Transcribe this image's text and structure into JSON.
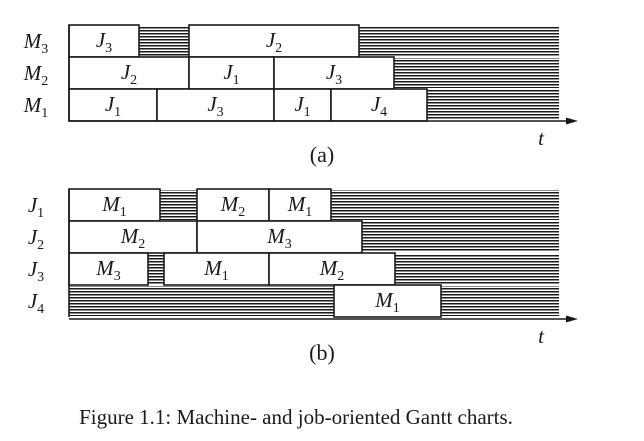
{
  "diagram_a": {
    "caption": "(a)",
    "axis_label": "t",
    "rows": [
      {
        "label": "M",
        "sub": "3",
        "segments": [
          {
            "type": "task",
            "name": "J",
            "sub": "3",
            "start": 0,
            "end": 7
          },
          {
            "type": "hatch",
            "start": 7,
            "end": 12
          },
          {
            "type": "task",
            "name": "J",
            "sub": "2",
            "start": 12,
            "end": 29
          },
          {
            "type": "hatch",
            "start": 29,
            "end": 49
          }
        ]
      },
      {
        "label": "M",
        "sub": "2",
        "segments": [
          {
            "type": "task",
            "name": "J",
            "sub": "2",
            "start": 0,
            "end": 12
          },
          {
            "type": "task",
            "name": "J",
            "sub": "1",
            "start": 12,
            "end": 20.5
          },
          {
            "type": "task",
            "name": "J",
            "sub": "3",
            "start": 20.5,
            "end": 32.5
          },
          {
            "type": "hatch",
            "start": 32.5,
            "end": 49
          }
        ]
      },
      {
        "label": "M",
        "sub": "1",
        "segments": [
          {
            "type": "task",
            "name": "J",
            "sub": "1",
            "start": 0,
            "end": 8.8
          },
          {
            "type": "task",
            "name": "J",
            "sub": "3",
            "start": 8.8,
            "end": 20.5
          },
          {
            "type": "task",
            "name": "J",
            "sub": "1",
            "start": 20.5,
            "end": 26.2
          },
          {
            "type": "task",
            "name": "J",
            "sub": "4",
            "start": 26.2,
            "end": 35.8
          },
          {
            "type": "hatch",
            "start": 35.8,
            "end": 49
          }
        ]
      }
    ]
  },
  "diagram_b": {
    "caption": "(b)",
    "axis_label": "t",
    "rows": [
      {
        "label": "J",
        "sub": "1",
        "segments": [
          {
            "type": "task",
            "name": "M",
            "sub": "1",
            "start": 0,
            "end": 9.1
          },
          {
            "type": "hatch",
            "start": 9.1,
            "end": 12.8
          },
          {
            "type": "task",
            "name": "M",
            "sub": "2",
            "start": 12.8,
            "end": 20
          },
          {
            "type": "task",
            "name": "M",
            "sub": "1",
            "start": 20,
            "end": 26.2
          },
          {
            "type": "hatch",
            "start": 26.2,
            "end": 49
          }
        ]
      },
      {
        "label": "J",
        "sub": "2",
        "segments": [
          {
            "type": "task",
            "name": "M",
            "sub": "2",
            "start": 0,
            "end": 12.8
          },
          {
            "type": "task",
            "name": "M",
            "sub": "3",
            "start": 12.8,
            "end": 29.3
          },
          {
            "type": "hatch",
            "start": 29.3,
            "end": 49
          }
        ]
      },
      {
        "label": "J",
        "sub": "3",
        "segments": [
          {
            "type": "task",
            "name": "M",
            "sub": "3",
            "start": 0,
            "end": 7.9
          },
          {
            "type": "hatch",
            "start": 7.9,
            "end": 9.5
          },
          {
            "type": "task",
            "name": "M",
            "sub": "1",
            "start": 9.5,
            "end": 20
          },
          {
            "type": "task",
            "name": "M",
            "sub": "2",
            "start": 20,
            "end": 32.6
          },
          {
            "type": "hatch",
            "start": 32.6,
            "end": 49
          }
        ]
      },
      {
        "label": "J",
        "sub": "4",
        "segments": [
          {
            "type": "hatch",
            "start": 0,
            "end": 26.5
          },
          {
            "type": "task",
            "name": "M",
            "sub": "1",
            "start": 26.5,
            "end": 37.2
          },
          {
            "type": "hatch",
            "start": 37.2,
            "end": 49
          }
        ]
      }
    ]
  },
  "figure_caption": "Figure 1.1: Machine- and job-oriented Gantt charts.",
  "colors": {
    "ink": "#1a1a1a",
    "background": "#ffffff"
  }
}
